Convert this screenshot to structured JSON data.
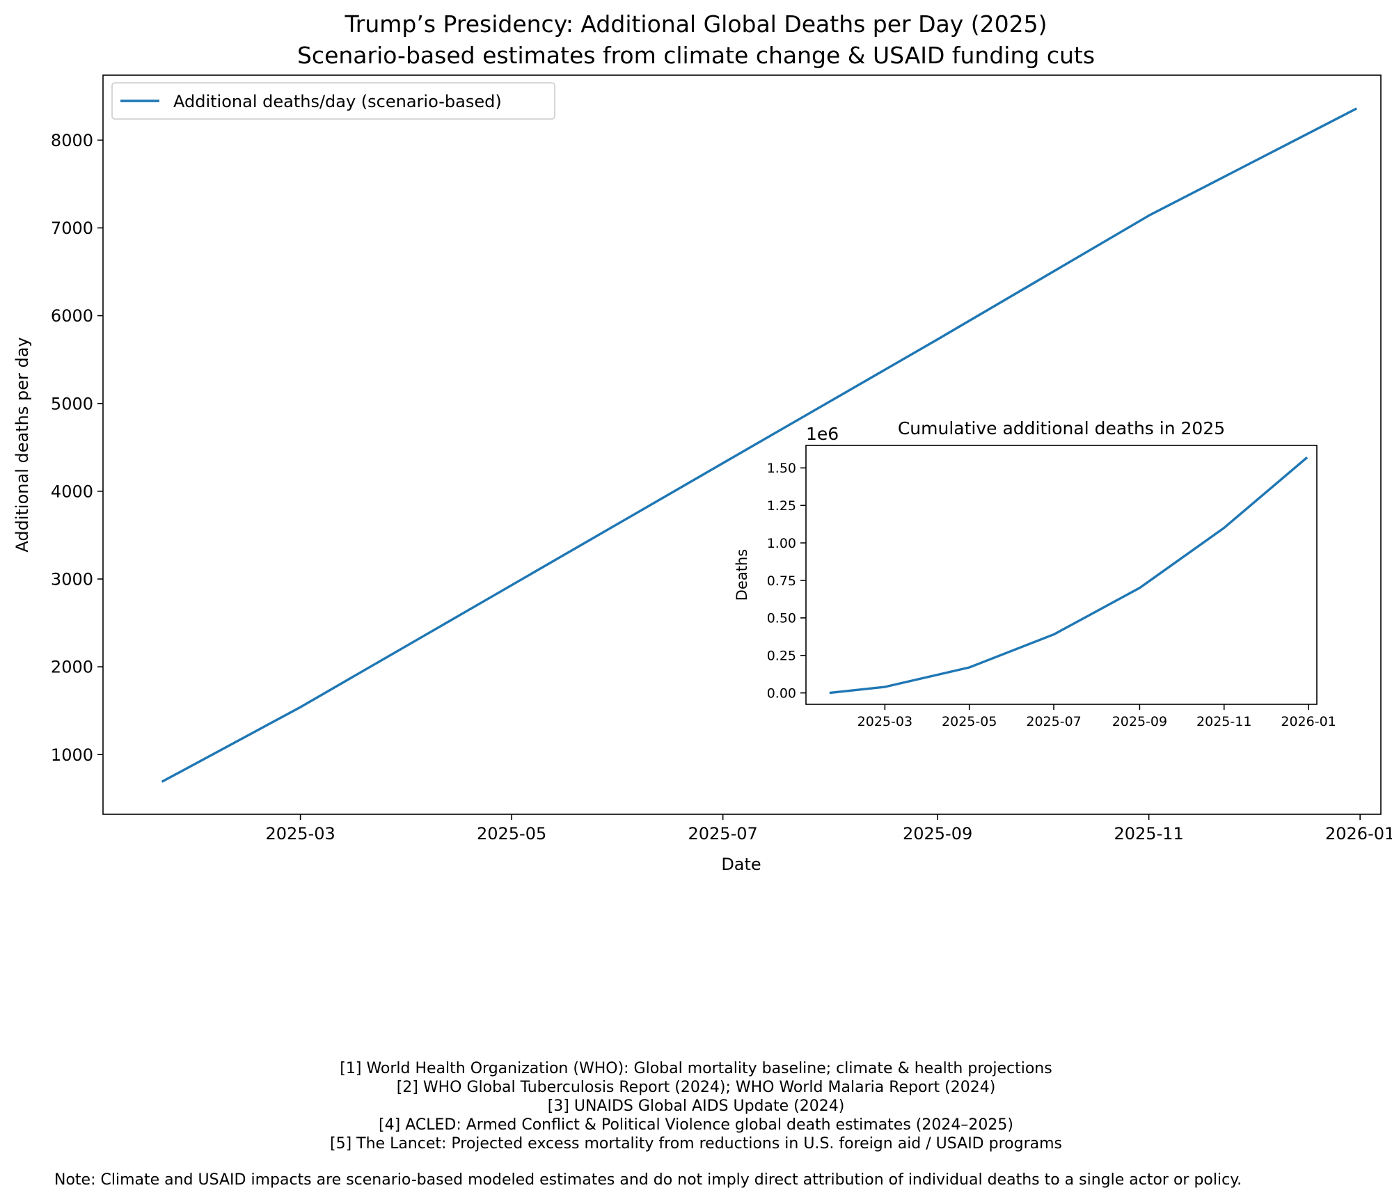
{
  "chart_data": [
    {
      "type": "line",
      "title": "Trump’s Presidency: Additional Global Deaths per Day (2025)",
      "subtitle": "Scenario-based estimates from climate change & USAID funding cuts",
      "xlabel": "Date",
      "ylabel": "Additional deaths per day",
      "x_ticks": [
        "2025-03",
        "2025-05",
        "2025-07",
        "2025-09",
        "2025-11",
        "2026-01"
      ],
      "y_ticks": [
        1000,
        2000,
        3000,
        4000,
        5000,
        6000,
        7000,
        8000
      ],
      "xlim": [
        "2025-01-03",
        "2026-01-07"
      ],
      "ylim": [
        320,
        8740
      ],
      "grid": false,
      "legend": "top-left",
      "color": "#1f77b4",
      "series": [
        {
          "name": "Additional deaths/day (scenario-based)",
          "x": [
            "2025-01-20",
            "2025-03-01",
            "2025-05-01",
            "2025-07-01",
            "2025-09-01",
            "2025-11-01",
            "2025-12-31"
          ],
          "y": [
            690,
            1540,
            2930,
            4320,
            5730,
            7140,
            8360
          ]
        }
      ]
    },
    {
      "type": "line",
      "title": "Cumulative additional deaths in 2025",
      "xlabel": "",
      "ylabel": "Deaths",
      "offset_label": "1e6",
      "x_ticks": [
        "2025-03",
        "2025-05",
        "2025-07",
        "2025-09",
        "2025-11",
        "2026-01"
      ],
      "y_ticks": [
        "0.00",
        "0.25",
        "0.50",
        "0.75",
        "1.00",
        "1.25",
        "1.50"
      ],
      "ylim": [
        -0.076,
        1.65
      ],
      "grid": false,
      "color": "#1f77b4",
      "series": [
        {
          "x": [
            "2025-01-20",
            "2025-03-01",
            "2025-05-01",
            "2025-07-01",
            "2025-09-01",
            "2025-11-01",
            "2025-12-31"
          ],
          "y": [
            0,
            0.04,
            0.17,
            0.39,
            0.7,
            1.1,
            1.57
          ]
        }
      ]
    }
  ],
  "footer": {
    "sources": [
      "[1] World Health Organization (WHO): Global mortality baseline; climate & health projections",
      "[2] WHO Global Tuberculosis Report (2024); WHO World Malaria Report (2024)",
      "[3] UNAIDS Global AIDS Update (2024)",
      "[4] ACLED: Armed Conflict & Political Violence global death estimates (2024–2025)",
      "[5] The Lancet: Projected excess mortality from reductions in U.S. foreign aid / USAID programs"
    ],
    "note": "Note: Climate and USAID impacts are scenario-based modeled estimates and do not imply direct attribution of individual deaths to a single actor or policy."
  }
}
